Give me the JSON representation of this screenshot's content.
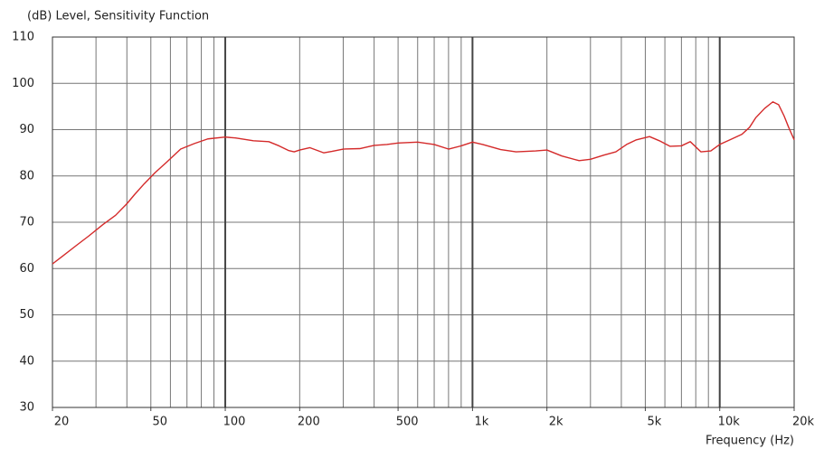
{
  "chart_data": {
    "type": "line",
    "title": "(dB) Level, Sensitivity Function",
    "xlabel": "Frequency (Hz)",
    "xscale": "log",
    "xlim": [
      20,
      20000
    ],
    "ylim": [
      30,
      110
    ],
    "yticks": [
      30,
      40,
      50,
      60,
      70,
      80,
      90,
      100,
      110
    ],
    "xticks": [
      20,
      50,
      100,
      200,
      500,
      {
        "value": 1000,
        "label": "1k"
      },
      {
        "value": 2000,
        "label": "2k"
      },
      {
        "value": 5000,
        "label": "5k"
      },
      {
        "value": 10000,
        "label": "10k"
      },
      {
        "value": 20000,
        "label": "20k"
      }
    ],
    "xgrid": [
      20,
      30,
      40,
      50,
      60,
      70,
      80,
      90,
      100,
      200,
      300,
      400,
      500,
      600,
      700,
      800,
      900,
      1000,
      2000,
      3000,
      4000,
      5000,
      6000,
      7000,
      8000,
      9000,
      10000,
      20000
    ],
    "grid": true,
    "color": "#d42a2a",
    "x": [
      20,
      22,
      25,
      28,
      32,
      36,
      40,
      43,
      47,
      52,
      58,
      66,
      75,
      85,
      100,
      110,
      130,
      150,
      165,
      180,
      190,
      200,
      220,
      250,
      270,
      300,
      350,
      400,
      450,
      500,
      600,
      700,
      800,
      900,
      1000,
      1100,
      1300,
      1500,
      1800,
      2000,
      2300,
      2700,
      3000,
      3400,
      3800,
      4200,
      4600,
      5200,
      5700,
      6300,
      7000,
      7600,
      8400,
      9200,
      10000,
      11000,
      12300,
      13200,
      14000,
      15200,
      16400,
      17300,
      18200,
      19000,
      20000
    ],
    "values": [
      61,
      62.7,
      65,
      67,
      69.5,
      71.5,
      74,
      76,
      78.3,
      80.7,
      83,
      85.8,
      87,
      88,
      88.4,
      88.2,
      87.6,
      87.4,
      86.5,
      85.5,
      85.2,
      85.6,
      86.1,
      85,
      85.3,
      85.8,
      85.9,
      86.6,
      86.8,
      87.1,
      87.3,
      86.8,
      85.8,
      86.5,
      87.3,
      86.8,
      85.7,
      85.2,
      85.4,
      85.6,
      84.3,
      83.3,
      83.6,
      84.5,
      85.2,
      86.8,
      87.8,
      88.5,
      87.6,
      86.4,
      86.5,
      87.4,
      85.2,
      85.4,
      86.8,
      87.8,
      89,
      90.5,
      92.6,
      94.6,
      96,
      95.4,
      93,
      90.5,
      87.8
    ]
  }
}
